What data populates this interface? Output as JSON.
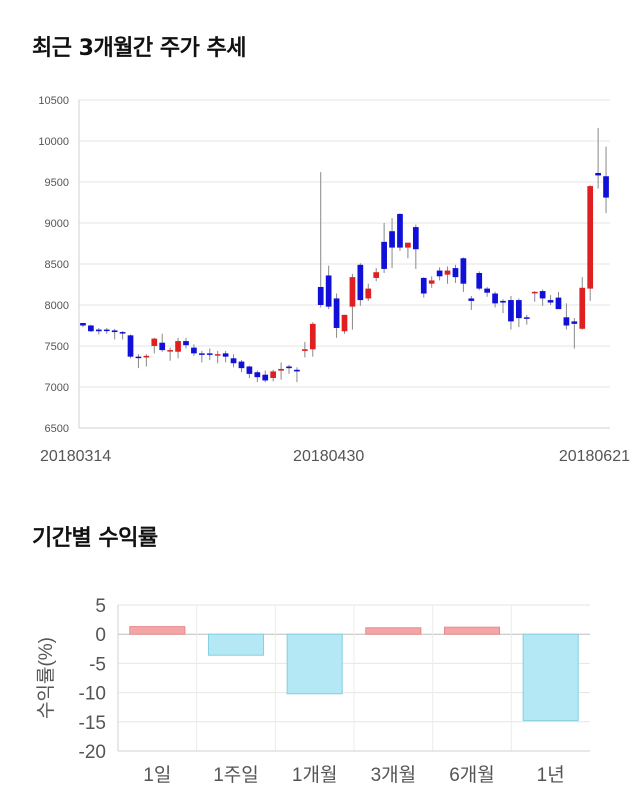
{
  "titles": {
    "stock_trend": "최근 3개월간 주가 추세",
    "period_returns": "기간별 수익률"
  },
  "chart_data": [
    {
      "type": "candlestick",
      "ylim": [
        6500,
        10500
      ],
      "y_ticks": [
        6500,
        7000,
        7500,
        8000,
        8500,
        9000,
        9500,
        10000,
        10500
      ],
      "x_ticks": [
        {
          "index": 0,
          "label": "20180314"
        },
        {
          "index": 31,
          "label": "20180430"
        },
        {
          "index": 63,
          "label": "20180621"
        }
      ],
      "up_color": "#e02020",
      "down_color": "#1010d8",
      "candles": [
        [
          7780,
          7780,
          7730,
          7750
        ],
        [
          7750,
          7760,
          7670,
          7680
        ],
        [
          7700,
          7720,
          7640,
          7680
        ],
        [
          7700,
          7720,
          7650,
          7690
        ],
        [
          7690,
          7710,
          7580,
          7670
        ],
        [
          7670,
          7680,
          7580,
          7660
        ],
        [
          7630,
          7640,
          7350,
          7370
        ],
        [
          7370,
          7400,
          7230,
          7360
        ],
        [
          7360,
          7400,
          7250,
          7380
        ],
        [
          7500,
          7600,
          7410,
          7590
        ],
        [
          7540,
          7650,
          7430,
          7450
        ],
        [
          7450,
          7480,
          7320,
          7450
        ],
        [
          7430,
          7600,
          7350,
          7560
        ],
        [
          7560,
          7600,
          7470,
          7510
        ],
        [
          7480,
          7520,
          7380,
          7410
        ],
        [
          7410,
          7440,
          7300,
          7400
        ],
        [
          7410,
          7470,
          7330,
          7400
        ],
        [
          7400,
          7440,
          7290,
          7400
        ],
        [
          7410,
          7440,
          7300,
          7370
        ],
        [
          7350,
          7400,
          7240,
          7290
        ],
        [
          7310,
          7330,
          7180,
          7230
        ],
        [
          7250,
          7260,
          7110,
          7160
        ],
        [
          7180,
          7200,
          7060,
          7120
        ],
        [
          7150,
          7200,
          7060,
          7080
        ],
        [
          7110,
          7210,
          7070,
          7190
        ],
        [
          7200,
          7300,
          7090,
          7220
        ],
        [
          7250,
          7270,
          7160,
          7230
        ],
        [
          7210,
          7240,
          7060,
          7190
        ],
        [
          7440,
          7550,
          7360,
          7460
        ],
        [
          7460,
          7790,
          7370,
          7770
        ],
        [
          8220,
          9620,
          7970,
          8000
        ],
        [
          8360,
          8480,
          7950,
          7980
        ],
        [
          8080,
          8140,
          7600,
          7720
        ],
        [
          7680,
          7880,
          7650,
          7880
        ],
        [
          7980,
          8380,
          7700,
          8340
        ],
        [
          8490,
          8510,
          7990,
          8060
        ],
        [
          8080,
          8260,
          8050,
          8200
        ],
        [
          8330,
          8450,
          8290,
          8400
        ],
        [
          8770,
          9000,
          8390,
          8440
        ],
        [
          8900,
          9060,
          8450,
          8700
        ],
        [
          9110,
          9120,
          8660,
          8700
        ],
        [
          8700,
          8760,
          8570,
          8760
        ],
        [
          8950,
          8980,
          8440,
          8680
        ],
        [
          8330,
          8340,
          8090,
          8140
        ],
        [
          8260,
          8350,
          8210,
          8300
        ],
        [
          8420,
          8460,
          8300,
          8350
        ],
        [
          8370,
          8470,
          8260,
          8420
        ],
        [
          8450,
          8490,
          8270,
          8340
        ],
        [
          8570,
          8580,
          8160,
          8260
        ],
        [
          8080,
          8110,
          7940,
          8050
        ],
        [
          8390,
          8410,
          8180,
          8200
        ],
        [
          8200,
          8220,
          8100,
          8150
        ],
        [
          8140,
          8160,
          7970,
          8020
        ],
        [
          8050,
          8070,
          7900,
          8030
        ],
        [
          8060,
          8110,
          7700,
          7800
        ],
        [
          8060,
          8080,
          7730,
          7840
        ],
        [
          7850,
          7880,
          7760,
          7840
        ],
        [
          8150,
          8170,
          8040,
          8160
        ],
        [
          8170,
          8190,
          7990,
          8080
        ],
        [
          8060,
          8120,
          8000,
          8030
        ],
        [
          8090,
          8160,
          7990,
          7950
        ],
        [
          7850,
          8020,
          7700,
          7750
        ],
        [
          7800,
          7840,
          7470,
          7770
        ],
        [
          7710,
          8340,
          7700,
          8210
        ],
        [
          8200,
          9460,
          8050,
          9450
        ],
        [
          9610,
          10160,
          9420,
          9580
        ],
        [
          9570,
          9930,
          9120,
          9310
        ]
      ]
    },
    {
      "type": "bar",
      "ylabel": "수익률(%)",
      "ylim": [
        -20,
        5
      ],
      "y_ticks": [
        5,
        0,
        -5,
        -10,
        -15,
        -20
      ],
      "categories": [
        "1일",
        "1주일",
        "1개월",
        "3개월",
        "6개월",
        "1년"
      ],
      "values": [
        1.3,
        -3.6,
        -10.2,
        1.1,
        1.2,
        -14.8
      ],
      "positive_color": "#f4a6a6",
      "negative_color": "#b3e8f4"
    }
  ]
}
